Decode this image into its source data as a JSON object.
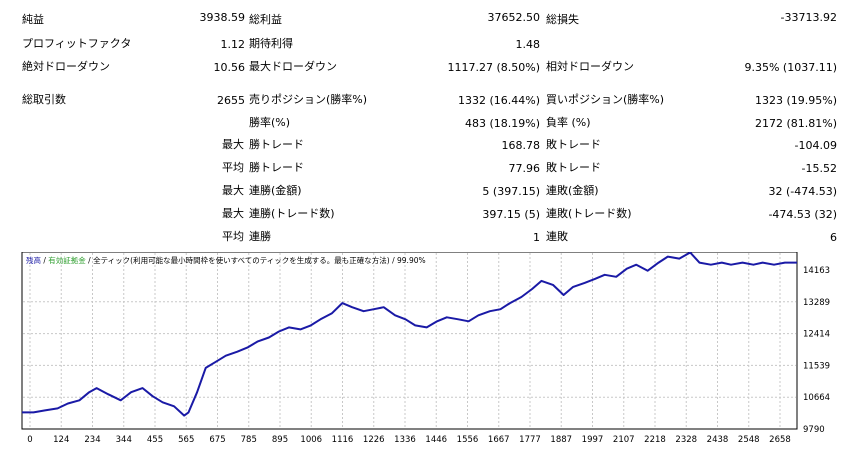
{
  "report": {
    "top_row": {
      "c1_label": "純益",
      "c1_value": "3938.59",
      "c2_label": "総利益",
      "c2_value": "37652.50",
      "c3_label": "総損失",
      "c3_value": "-33713.92"
    },
    "row2": {
      "c1_label": "プロフィットファクタ",
      "c1_value": "1.12",
      "c2_label": "期待利得",
      "c2_value": "1.48"
    },
    "row3": {
      "c1_label": "絶対ドローダウン",
      "c1_value": "10.56",
      "c2_label": "最大ドローダウン",
      "c2_value": "1117.27 (8.50%)",
      "c3_label": "相対ドローダウン",
      "c3_value": "9.35% (1037.11)"
    },
    "row4": {
      "c1_label": "総取引数",
      "c1_value": "2655",
      "c2_label": "売りポジション(勝率%)",
      "c2_value": "1332 (16.44%)",
      "c3_label": "買いポジション(勝率%)",
      "c3_value": "1323 (19.95%)"
    },
    "row5": {
      "c2_label": "勝率(%)",
      "c2_value": "483 (18.19%)",
      "c3_label": "負率 (%)",
      "c3_value": "2172 (81.81%)"
    },
    "row6": {
      "prefix": "最大",
      "c2_label": "勝トレード",
      "c2_value": "168.78",
      "c3_label": "敗トレード",
      "c3_value": "-104.09"
    },
    "row7": {
      "prefix": "平均",
      "c2_label": "勝トレード",
      "c2_value": "77.96",
      "c3_label": "敗トレード",
      "c3_value": "-15.52"
    },
    "row8": {
      "prefix": "最大",
      "c2_label": "連勝(金額)",
      "c2_value": "5 (397.15)",
      "c3_label": "連敗(金額)",
      "c3_value": "32 (-474.53)"
    },
    "row9": {
      "prefix": "最大",
      "c2_label": "連勝(トレード数)",
      "c2_value": "397.15 (5)",
      "c3_label": "連敗(トレード数)",
      "c3_value": "-474.53 (32)"
    },
    "row10": {
      "prefix": "平均",
      "c2_label": "連勝",
      "c2_value": "1",
      "c3_label": "連敗",
      "c3_value": "6"
    }
  },
  "chart_header": {
    "part1": "残高",
    "sep1": " / ",
    "part2": "有効証拠金",
    "sep2": " / ",
    "part3": "全ティック(利用可能な最小時間枠を使いすべてのティックを生成する。最も正確な方法)",
    "part4": " / 99.90%"
  },
  "colors": {
    "line": "#1a1aa6",
    "part1": "#1a1aa6",
    "part2": "#2e9e2e",
    "grid": "#c8c8c8"
  },
  "chart_data": {
    "type": "line",
    "series": [],
    "x_ticks": [
      "0",
      "124",
      "234",
      "344",
      "455",
      "565",
      "675",
      "785",
      "895",
      "1006",
      "1116",
      "1226",
      "1336",
      "1446",
      "1556",
      "1667",
      "1777",
      "1887",
      "1997",
      "2107",
      "2218",
      "2328",
      "2438",
      "2548",
      "2658"
    ],
    "y_ticks": [
      "14163",
      "13289",
      "12414",
      "11539",
      "10664",
      "9790"
    ],
    "xlim": [
      0,
      2700
    ],
    "ylim": [
      9790,
      14163
    ],
    "x": [
      0,
      40,
      80,
      124,
      160,
      200,
      234,
      260,
      300,
      344,
      380,
      420,
      455,
      490,
      530,
      565,
      580,
      610,
      640,
      675,
      710,
      750,
      785,
      820,
      860,
      895,
      930,
      970,
      1006,
      1040,
      1080,
      1116,
      1150,
      1190,
      1226,
      1260,
      1300,
      1336,
      1370,
      1410,
      1446,
      1480,
      1520,
      1556,
      1590,
      1630,
      1667,
      1700,
      1740,
      1777,
      1810,
      1850,
      1887,
      1920,
      1960,
      1997,
      2030,
      2070,
      2107,
      2140,
      2180,
      2218,
      2250,
      2290,
      2328,
      2360,
      2400,
      2438,
      2470,
      2510,
      2548,
      2580,
      2620,
      2658,
      2700
    ],
    "values": [
      10200,
      10200,
      10250,
      10300,
      10420,
      10500,
      10700,
      10800,
      10650,
      10500,
      10700,
      10800,
      10600,
      10450,
      10350,
      10120,
      10200,
      10700,
      11300,
      11450,
      11600,
      11700,
      11800,
      11950,
      12050,
      12200,
      12300,
      12250,
      12350,
      12500,
      12650,
      12900,
      12800,
      12700,
      12750,
      12800,
      12600,
      12500,
      12350,
      12300,
      12450,
      12550,
      12500,
      12450,
      12600,
      12700,
      12750,
      12900,
      13050,
      13250,
      13450,
      13350,
      13100,
      13300,
      13400,
      13500,
      13600,
      13550,
      13750,
      13850,
      13700,
      13900,
      14050,
      14000,
      14150,
      13900,
      13850,
      13900,
      13850,
      13900,
      13850,
      13900,
      13850,
      13900,
      13900
    ]
  }
}
